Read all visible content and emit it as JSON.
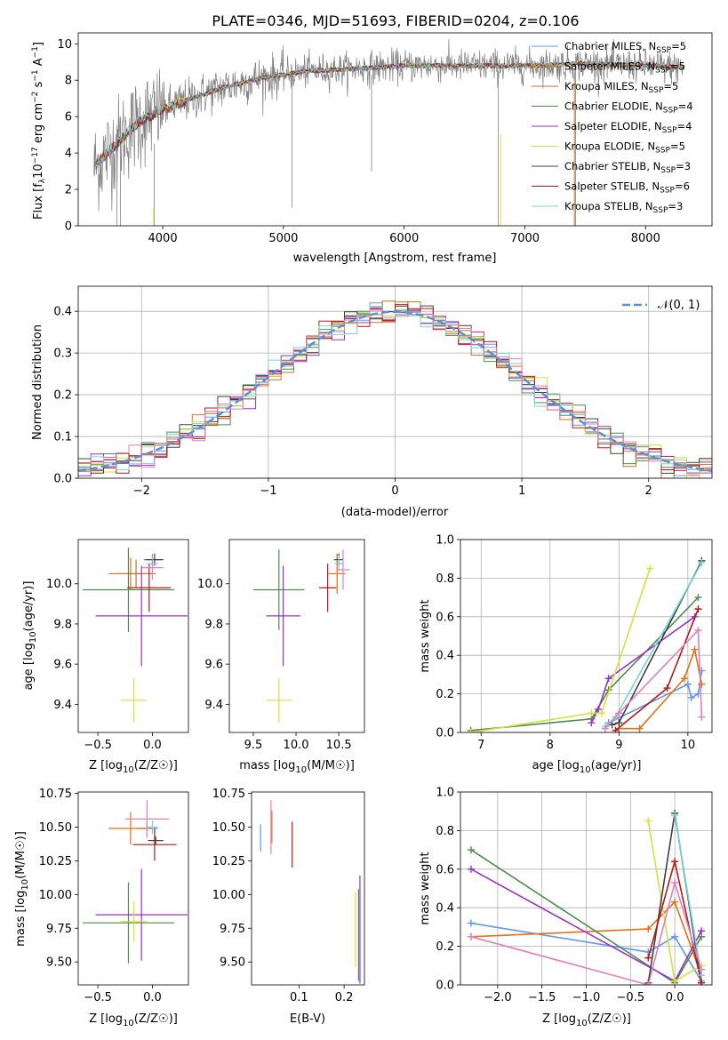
{
  "title": "PLATE=0346, MJD=51693, FIBERID=0204, z=0.106",
  "colors": {
    "data": "#808080",
    "Chabrier MILES": "#6495ed",
    "Salpeter MILES": "#e27218",
    "Kroupa MILES": "#b8762f",
    "Chabrier ELODIE": "#4f8a4f",
    "Salpeter ELODIE": "#9a32c8",
    "Kroupa ELODIE": "#d4e040",
    "Chabrier STELIB": "#404040",
    "Salpeter STELIB": "#b41a1a",
    "Kroupa STELIB": "#78d2dc",
    "pink": "#e27fbf",
    "yellow_green": "#c8e650",
    "normal_curve": "#5b8fd6"
  },
  "chart_data": [
    {
      "id": "spectrum",
      "type": "line",
      "xlabel": "wavelength [Angstrom, rest frame]",
      "ylabel": "Flux [f_λ 10^-17 erg cm^-2 s^-1 A^-1]",
      "xlim": [
        3300,
        8550
      ],
      "ylim": [
        0,
        10.6
      ],
      "xticks": [
        "4000",
        "5000",
        "6000",
        "7000",
        "8000"
      ],
      "yticks": [
        "0",
        "2",
        "4",
        "6",
        "8",
        "10"
      ],
      "legend_position": "right",
      "legend": [
        {
          "name": "Chabrier MILES, N",
          "sub": "SSP",
          "tail": "=5"
        },
        {
          "name": "Salpeter MILES, N",
          "sub": "SSP",
          "tail": "=5"
        },
        {
          "name": "Kroupa MILES, N",
          "sub": "SSP",
          "tail": "=5"
        },
        {
          "name": "Chabrier ELODIE, N",
          "sub": "SSP",
          "tail": "=4"
        },
        {
          "name": "Salpeter ELODIE, N",
          "sub": "SSP",
          "tail": "=4"
        },
        {
          "name": "Kroupa ELODIE, N",
          "sub": "SSP",
          "tail": "=5"
        },
        {
          "name": "Chabrier STELIB, N",
          "sub": "SSP",
          "tail": "=3"
        },
        {
          "name": "Salpeter STELIB, N",
          "sub": "SSP",
          "tail": "=6"
        },
        {
          "name": "Kroupa STELIB, N",
          "sub": "SSP",
          "tail": "=3"
        }
      ],
      "continuum": {
        "x": [
          3430,
          3600,
          3800,
          4000,
          4200,
          4500,
          4800,
          5000,
          5200,
          5500,
          6000,
          6500,
          7000,
          7500,
          8000,
          8300
        ],
        "y": [
          3.2,
          4.4,
          5.7,
          6.4,
          6.9,
          7.6,
          8.1,
          8.3,
          8.5,
          8.6,
          8.8,
          8.8,
          8.8,
          8.9,
          8.8,
          8.7
        ]
      }
    },
    {
      "id": "residual-histogram",
      "type": "step",
      "xlabel": "(data-model)/error",
      "ylabel": "Normed distribution",
      "xlim": [
        -2.5,
        2.5
      ],
      "ylim": [
        0,
        0.46
      ],
      "xticks": [
        "−2",
        "−1",
        "0",
        "1",
        "2"
      ],
      "yticks": [
        "0.0",
        "0.1",
        "0.2",
        "0.3",
        "0.4"
      ],
      "grid": true,
      "legend_position": "top-right",
      "curve_label": "𝒩(0, 1)",
      "bin_width": 0.1
    },
    {
      "id": "age-vs-z",
      "type": "errorbar",
      "xlabel": "Z [log10(Z/Z☉)]",
      "ylabel": "age [log10(age/yr)]",
      "xlim": [
        -0.68,
        0.33
      ],
      "ylim": [
        9.26,
        10.22
      ],
      "xticks": [
        "−0.5",
        "0.0"
      ],
      "yticks": [
        "9.4",
        "9.6",
        "9.8",
        "10.0"
      ],
      "points": [
        {
          "series": "Chabrier MILES",
          "x": 0.0,
          "y": 10.12,
          "xerr": 0.08,
          "yerr": 0.03
        },
        {
          "series": "Salpeter MILES",
          "x": -0.2,
          "y": 10.05,
          "xerr": 0.2,
          "yerr": 0.08
        },
        {
          "series": "Kroupa MILES",
          "x": -0.15,
          "y": 10.05,
          "xerr": 0.18,
          "yerr": 0.07
        },
        {
          "series": "Chabrier ELODIE",
          "x": -0.22,
          "y": 9.97,
          "xerr": 0.42,
          "yerr": 0.21
        },
        {
          "series": "Salpeter ELODIE",
          "x": -0.1,
          "y": 9.84,
          "xerr": 0.42,
          "yerr": 0.25
        },
        {
          "series": "Kroupa ELODIE",
          "x": -0.17,
          "y": 9.42,
          "xerr": 0.12,
          "yerr": 0.11
        },
        {
          "series": "Chabrier STELIB",
          "x": 0.02,
          "y": 10.12,
          "xerr": 0.08,
          "yerr": 0.03
        },
        {
          "series": "Salpeter STELIB",
          "x": -0.03,
          "y": 9.98,
          "xerr": 0.2,
          "yerr": 0.12
        },
        {
          "series": "Kroupa STELIB",
          "x": 0.0,
          "y": 10.1,
          "xerr": 0.05,
          "yerr": 0.04
        },
        {
          "series": "pink",
          "x": 0.0,
          "y": 10.08,
          "xerr": 0.1,
          "yerr": 0.06
        }
      ]
    },
    {
      "id": "age-vs-mass",
      "type": "errorbar",
      "xlabel": "mass [log10(M/M☉)]",
      "ylabel": "",
      "xlim": [
        9.22,
        10.8
      ],
      "ylim": [
        9.26,
        10.22
      ],
      "xticks": [
        "9.5",
        "10.0",
        "10.5"
      ],
      "yticks": [
        "9.4",
        "9.6",
        "9.8",
        "10.0"
      ],
      "points": [
        {
          "series": "Chabrier MILES",
          "x": 10.48,
          "y": 10.12,
          "xerr": 0.04,
          "yerr": 0.03
        },
        {
          "series": "Salpeter MILES",
          "x": 10.48,
          "y": 10.05,
          "xerr": 0.1,
          "yerr": 0.1
        },
        {
          "series": "Chabrier ELODIE",
          "x": 9.8,
          "y": 9.97,
          "xerr": 0.3,
          "yerr": 0.2
        },
        {
          "series": "Salpeter ELODIE",
          "x": 9.85,
          "y": 9.84,
          "xerr": 0.2,
          "yerr": 0.25
        },
        {
          "series": "Kroupa ELODIE",
          "x": 9.8,
          "y": 9.42,
          "xerr": 0.15,
          "yerr": 0.11
        },
        {
          "series": "Chabrier STELIB",
          "x": 10.5,
          "y": 10.12,
          "xerr": 0.05,
          "yerr": 0.03
        },
        {
          "series": "Salpeter STELIB",
          "x": 10.37,
          "y": 9.98,
          "xerr": 0.1,
          "yerr": 0.12
        },
        {
          "series": "Kroupa STELIB",
          "x": 10.5,
          "y": 10.1,
          "xerr": 0.05,
          "yerr": 0.04
        },
        {
          "series": "pink",
          "x": 10.55,
          "y": 10.07,
          "xerr": 0.08,
          "yerr": 0.1
        }
      ]
    },
    {
      "id": "mass-weight-vs-age",
      "type": "line",
      "xlabel": "age [log10(age/yr)]",
      "ylabel": "mass weight",
      "xlim": [
        6.7,
        10.35
      ],
      "ylim": [
        0,
        1.0
      ],
      "xticks": [
        "7",
        "8",
        "9",
        "10"
      ],
      "yticks": [
        "0.0",
        "0.2",
        "0.4",
        "0.6",
        "0.8",
        "1.0"
      ],
      "grid": true,
      "series": [
        {
          "name": "Chabrier MILES",
          "x": [
            8.85,
            10.0,
            10.05,
            10.15,
            10.2
          ],
          "y": [
            0.05,
            0.25,
            0.18,
            0.2,
            0.32
          ]
        },
        {
          "name": "Salpeter MILES",
          "x": [
            9.0,
            9.3,
            9.95,
            10.1,
            10.2
          ],
          "y": [
            0.02,
            0.02,
            0.28,
            0.43,
            0.25
          ]
        },
        {
          "name": "Chabrier ELODIE",
          "x": [
            6.85,
            8.6,
            8.85,
            10.15
          ],
          "y": [
            0.01,
            0.07,
            0.22,
            0.7
          ]
        },
        {
          "name": "Salpeter ELODIE",
          "x": [
            8.6,
            8.7,
            8.85,
            10.1
          ],
          "y": [
            0.05,
            0.12,
            0.28,
            0.6
          ]
        },
        {
          "name": "Kroupa ELODIE",
          "x": [
            6.85,
            8.6,
            8.75,
            9.45
          ],
          "y": [
            0.0,
            0.1,
            0.1,
            0.85
          ]
        },
        {
          "name": "Chabrier STELIB",
          "x": [
            8.9,
            9.0,
            10.2
          ],
          "y": [
            0.04,
            0.05,
            0.89
          ]
        },
        {
          "name": "Salpeter STELIB",
          "x": [
            8.95,
            9.7,
            10.15
          ],
          "y": [
            0.01,
            0.23,
            0.64
          ]
        },
        {
          "name": "Kroupa STELIB",
          "x": [
            8.8,
            8.95,
            10.2
          ],
          "y": [
            0.03,
            0.08,
            0.88
          ]
        },
        {
          "name": "pink",
          "x": [
            8.8,
            9.0,
            10.15,
            10.2
          ],
          "y": [
            0.02,
            0.1,
            0.53,
            0.08
          ]
        }
      ]
    },
    {
      "id": "mass-vs-z",
      "type": "errorbar",
      "xlabel": "Z [log10(Z/Z☉)]",
      "ylabel": "mass [log10(M/M☉)]",
      "xlim": [
        -0.68,
        0.33
      ],
      "ylim": [
        9.33,
        10.76
      ],
      "xticks": [
        "−0.5",
        "0.0"
      ],
      "yticks": [
        "9.50",
        "9.75",
        "10.00",
        "10.25",
        "10.50",
        "10.75"
      ],
      "points": [
        {
          "series": "Chabrier MILES",
          "x": -0.05,
          "y": 10.49,
          "xerr": 0.1,
          "yerr": 0.05
        },
        {
          "series": "Salpeter MILES",
          "x": -0.2,
          "y": 10.49,
          "xerr": 0.2,
          "yerr": 0.12
        },
        {
          "series": "Chabrier ELODIE",
          "x": -0.22,
          "y": 9.79,
          "xerr": 0.42,
          "yerr": 0.3
        },
        {
          "series": "Salpeter ELODIE",
          "x": -0.1,
          "y": 9.85,
          "xerr": 0.42,
          "yerr": 0.34
        },
        {
          "series": "Kroupa ELODIE",
          "x": -0.17,
          "y": 9.8,
          "xerr": 0.12,
          "yerr": 0.15
        },
        {
          "series": "Chabrier STELIB",
          "x": 0.03,
          "y": 10.4,
          "xerr": 0.07,
          "yerr": 0.03
        },
        {
          "series": "Salpeter STELIB",
          "x": 0.02,
          "y": 10.37,
          "xerr": 0.2,
          "yerr": 0.12
        },
        {
          "series": "Kroupa STELIB",
          "x": 0.0,
          "y": 10.5,
          "xerr": 0.05,
          "yerr": 0.05
        },
        {
          "series": "pink",
          "x": -0.05,
          "y": 10.56,
          "xerr": 0.2,
          "yerr": 0.14
        }
      ]
    },
    {
      "id": "mass-vs-ebv",
      "type": "errorbar",
      "xlabel": "E(B-V)",
      "ylabel": "",
      "xlim": [
        -0.005,
        0.245
      ],
      "ylim": [
        9.33,
        10.76
      ],
      "xticks": [
        "0.1",
        "0.2"
      ],
      "yticks": [
        "9.50",
        "9.75",
        "10.00",
        "10.25",
        "10.50",
        "10.75"
      ],
      "points": [
        {
          "series": "Chabrier MILES",
          "x": 0.015,
          "y": 10.42,
          "xerr": 0,
          "yerr": 0.1
        },
        {
          "series": "Salpeter MILES",
          "x": 0.04,
          "y": 10.5,
          "xerr": 0,
          "yerr": 0.12
        },
        {
          "series": "pink",
          "x": 0.038,
          "y": 10.5,
          "xerr": 0,
          "yerr": 0.2
        },
        {
          "series": "Salpeter STELIB",
          "x": 0.085,
          "y": 10.37,
          "xerr": 0,
          "yerr": 0.17
        },
        {
          "series": "Kroupa ELODIE",
          "x": 0.225,
          "y": 9.74,
          "xerr": 0,
          "yerr": 0.28
        },
        {
          "series": "Chabrier ELODIE",
          "x": 0.232,
          "y": 9.7,
          "xerr": 0,
          "yerr": 0.34
        },
        {
          "series": "Salpeter ELODIE",
          "x": 0.235,
          "y": 9.74,
          "xerr": 0,
          "yerr": 0.4
        }
      ]
    },
    {
      "id": "mass-weight-vs-z",
      "type": "line",
      "xlabel": "Z [log10(Z/Z☉)]",
      "ylabel": "mass weight",
      "xlim": [
        -2.42,
        0.42
      ],
      "ylim": [
        0,
        1.0
      ],
      "xticks": [
        "−2.0",
        "−1.5",
        "−1.0",
        "−0.5",
        "0.0"
      ],
      "yticks": [
        "0.0",
        "0.2",
        "0.4",
        "0.6",
        "0.8",
        "1.0"
      ],
      "grid": true,
      "series": [
        {
          "name": "Chabrier MILES",
          "x": [
            -2.3,
            -0.3,
            0.0,
            0.3
          ],
          "y": [
            0.32,
            0.17,
            0.25,
            0.02
          ]
        },
        {
          "name": "Salpeter MILES",
          "x": [
            -2.3,
            -0.3,
            0.0,
            0.3
          ],
          "y": [
            0.25,
            0.29,
            0.43,
            0.05
          ]
        },
        {
          "name": "Chabrier ELODIE",
          "x": [
            -2.3,
            0.0,
            0.3
          ],
          "y": [
            0.7,
            0.01,
            0.25
          ]
        },
        {
          "name": "Salpeter ELODIE",
          "x": [
            -2.3,
            0.0,
            0.3
          ],
          "y": [
            0.6,
            0.02,
            0.28
          ]
        },
        {
          "name": "Kroupa ELODIE",
          "x": [
            -0.3,
            0.0,
            0.3
          ],
          "y": [
            0.85,
            0.02,
            0.1
          ]
        },
        {
          "name": "Chabrier STELIB",
          "x": [
            -0.3,
            0.0,
            0.3
          ],
          "y": [
            0.01,
            0.89,
            0.01
          ]
        },
        {
          "name": "Salpeter STELIB",
          "x": [
            -0.3,
            0.0,
            0.3
          ],
          "y": [
            0.14,
            0.64,
            0.01
          ]
        },
        {
          "name": "Kroupa STELIB",
          "x": [
            0.0,
            0.3
          ],
          "y": [
            0.88,
            0.05
          ]
        },
        {
          "name": "pink",
          "x": [
            -2.3,
            -0.3,
            0.0,
            0.3
          ],
          "y": [
            0.25,
            0.0,
            0.53,
            0.08
          ]
        }
      ]
    }
  ]
}
